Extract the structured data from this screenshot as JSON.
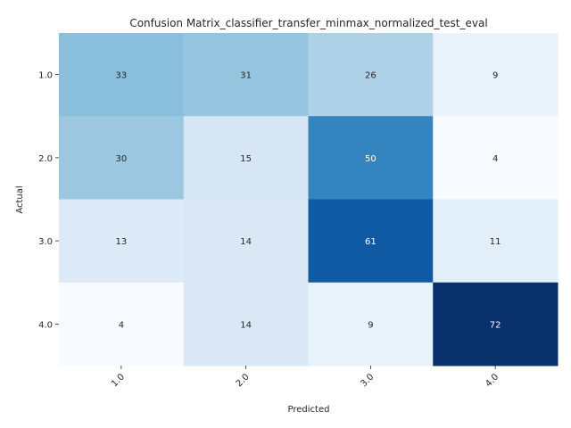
{
  "chart_data": {
    "type": "heatmap",
    "title": "Confusion Matrix_classifier_transfer_minmax_normalized_test_eval",
    "xlabel": "Predicted",
    "ylabel": "Actual",
    "x_categories": [
      "1.0",
      "2.0",
      "3.0",
      "4.0"
    ],
    "y_categories": [
      "1.0",
      "2.0",
      "3.0",
      "4.0"
    ],
    "values": [
      [
        33,
        31,
        26,
        9
      ],
      [
        30,
        15,
        50,
        4
      ],
      [
        13,
        14,
        61,
        11
      ],
      [
        4,
        14,
        9,
        72
      ]
    ],
    "colormap": "Blues",
    "color_low": "#f7fbff",
    "color_high": "#08306b",
    "annotated": true,
    "colorbar": false
  }
}
